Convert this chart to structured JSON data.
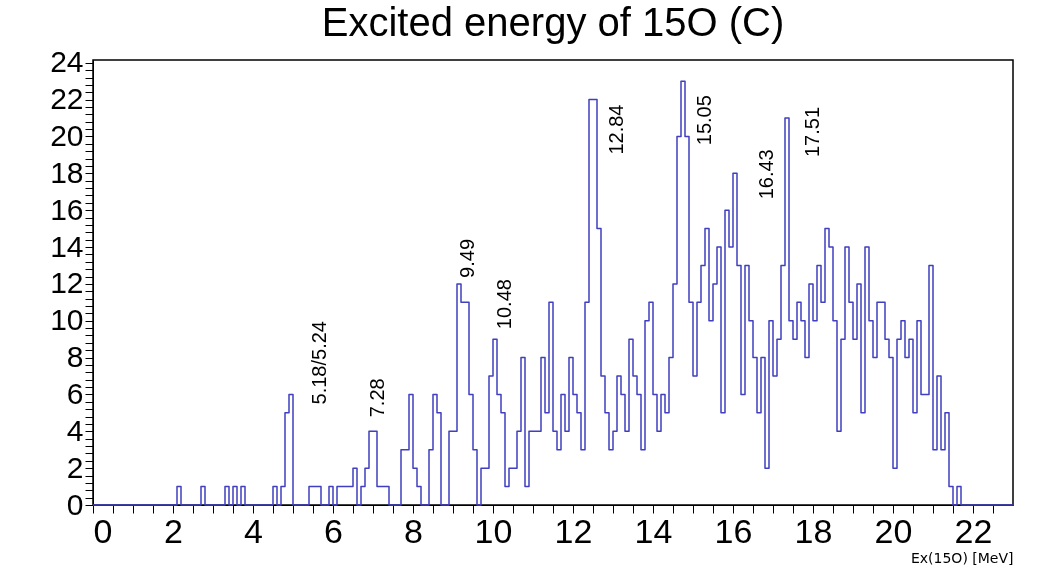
{
  "chart_data": {
    "type": "histogram",
    "title": "Excited energy of 15O (C)",
    "xlabel": "Ex(15O) [MeV]",
    "bins": [
      0,
      0.1,
      0.2,
      0.3,
      0.4,
      0.5,
      0.6,
      0.7,
      0.8,
      0.9,
      1,
      1.1,
      1.2,
      1.3,
      1.4,
      1.5,
      1.6,
      1.7,
      1.8,
      1.9,
      2,
      2.1,
      2.2,
      2.3,
      2.4,
      2.5,
      2.6,
      2.7,
      2.8,
      2.9,
      3,
      3.1,
      3.2,
      3.3,
      3.4,
      3.5,
      3.6,
      3.7,
      3.8,
      3.9,
      4,
      4.1,
      4.2,
      4.3,
      4.4,
      4.5,
      4.6,
      4.7,
      4.8,
      4.9,
      5,
      5.1,
      5.2,
      5.3,
      5.4,
      5.5,
      5.6,
      5.7,
      5.8,
      5.9,
      6,
      6.1,
      6.2,
      6.3,
      6.4,
      6.5,
      6.6,
      6.7,
      6.8,
      6.9,
      7,
      7.1,
      7.2,
      7.3,
      7.4,
      7.5,
      7.6,
      7.7,
      7.8,
      7.9,
      8,
      8.1,
      8.2,
      8.3,
      8.4,
      8.5,
      8.6,
      8.7,
      8.8,
      8.9,
      9,
      9.1,
      9.2,
      9.3,
      9.4,
      9.5,
      9.6,
      9.7,
      9.8,
      9.9,
      10,
      10.1,
      10.2,
      10.3,
      10.4,
      10.5,
      10.6,
      10.7,
      10.8,
      10.9,
      11,
      11.1,
      11.2,
      11.3,
      11.4,
      11.5,
      11.6,
      11.7,
      11.8,
      11.9,
      12,
      12.1,
      12.2,
      12.3,
      12.4,
      12.5,
      12.6,
      12.7,
      12.8,
      12.9,
      13,
      13.1,
      13.2,
      13.3,
      13.4,
      13.5,
      13.6,
      13.7,
      13.8,
      13.9,
      14,
      14.1,
      14.2,
      14.3,
      14.4,
      14.5,
      14.6,
      14.7,
      14.8,
      14.9,
      15,
      15.1,
      15.2,
      15.3,
      15.4,
      15.5,
      15.6,
      15.7,
      15.8,
      15.9,
      16,
      16.1,
      16.2,
      16.3,
      16.4,
      16.5,
      16.6,
      16.7,
      16.8,
      16.9,
      17,
      17.1,
      17.2,
      17.3,
      17.4,
      17.5,
      17.6,
      17.7,
      17.8,
      17.9,
      18,
      18.1,
      18.2,
      18.3,
      18.4,
      18.5,
      18.6,
      18.7,
      18.8,
      18.9,
      19,
      19.1,
      19.2,
      19.3,
      19.4,
      19.5,
      19.6,
      19.7,
      19.8,
      19.9,
      20,
      20.1,
      20.2,
      20.3,
      20.4,
      20.5,
      20.6,
      20.7,
      20.8,
      20.9,
      21,
      21.1,
      21.2,
      21.3,
      21.4,
      21.5,
      21.6,
      21.7,
      21.8,
      21.9,
      22,
      22.1,
      22.2,
      22.3,
      22.4,
      22.5,
      22.6,
      22.7,
      22.8,
      22.9,
      23
    ],
    "values": [
      0,
      0,
      0,
      0,
      0,
      0,
      0,
      0,
      0,
      0,
      0,
      0,
      0,
      0,
      0,
      0,
      0,
      0,
      0,
      0,
      0,
      1,
      0,
      0,
      0,
      0,
      0,
      1,
      0,
      0,
      0,
      0,
      0,
      1,
      0,
      1,
      0,
      1,
      0,
      0,
      0,
      0,
      0,
      0,
      0,
      1,
      0,
      1,
      5,
      6,
      0,
      0,
      0,
      0,
      1,
      1,
      1,
      0,
      0,
      1,
      0,
      1,
      1,
      1,
      1,
      2,
      0,
      1,
      2,
      4,
      4,
      1,
      1,
      1,
      0,
      0,
      0,
      3,
      3,
      6,
      2,
      1,
      0,
      0,
      3,
      6,
      5,
      0,
      0,
      4,
      4,
      12,
      11,
      11,
      6,
      3,
      0,
      2,
      2,
      7,
      9,
      6,
      5,
      1,
      2,
      2,
      4,
      8,
      1,
      4,
      4,
      4,
      8,
      5,
      11,
      4,
      3,
      6,
      4,
      8,
      6,
      5,
      3,
      11,
      22,
      22,
      15,
      7,
      5,
      3,
      4,
      7,
      6,
      4,
      9,
      7,
      6,
      3,
      10,
      11,
      6,
      4,
      6,
      5,
      8,
      12,
      20,
      23,
      20,
      11,
      7,
      11,
      13,
      15,
      10,
      12,
      14,
      5,
      16,
      14,
      18,
      13,
      6,
      13,
      10,
      8,
      5,
      8,
      2,
      10,
      7,
      9,
      13,
      21,
      10,
      9,
      11,
      10,
      8,
      12,
      10,
      13,
      11,
      15,
      14,
      10,
      4,
      9,
      14,
      11,
      9,
      12,
      5,
      14,
      10,
      8,
      11,
      11,
      9,
      8,
      2,
      9,
      10,
      8,
      9,
      5,
      10,
      6,
      6,
      13,
      3,
      7,
      3,
      5,
      1,
      0,
      1,
      0,
      0,
      0,
      0,
      0,
      0,
      0,
      0,
      0,
      0,
      0,
      0,
      0
    ],
    "color": "#3f3fbf",
    "xlim": [
      0,
      23
    ],
    "xticks": [
      0,
      {
        "value": 0.5,
        "label": null
      },
      {
        "value": 1,
        "label": null
      },
      {
        "value": 1.5,
        "label": null
      },
      2,
      {
        "value": 2.5,
        "label": null
      },
      {
        "value": 3,
        "label": null
      },
      {
        "value": 3.5,
        "label": null
      },
      4,
      {
        "value": 4.5,
        "label": null
      },
      {
        "value": 5,
        "label": null
      },
      {
        "value": 5.5,
        "label": null
      },
      6,
      {
        "value": 6.5,
        "label": null
      },
      {
        "value": 7,
        "label": null
      },
      {
        "value": 7.5,
        "label": null
      },
      8,
      {
        "value": 8.5,
        "label": null
      },
      {
        "value": 9,
        "label": null
      },
      {
        "value": 9.5,
        "label": null
      },
      10,
      {
        "value": 10.5,
        "label": null
      },
      {
        "value": 11,
        "label": null
      },
      {
        "value": 11.5,
        "label": null
      },
      12,
      {
        "value": 12.5,
        "label": null
      },
      {
        "value": 13,
        "label": null
      },
      {
        "value": 13.5,
        "label": null
      },
      14,
      {
        "value": 14.5,
        "label": null
      },
      {
        "value": 15,
        "label": null
      },
      {
        "value": 15.5,
        "label": null
      },
      16,
      {
        "value": 16.5,
        "label": null
      },
      {
        "value": 17,
        "label": null
      },
      {
        "value": 17.5,
        "label": null
      },
      18,
      {
        "value": 18.5,
        "label": null
      },
      {
        "value": 19,
        "label": null
      },
      {
        "value": 19.5,
        "label": null
      },
      20,
      {
        "value": 20.5,
        "label": null
      },
      {
        "value": 21,
        "label": null
      },
      {
        "value": 21.5,
        "label": null
      },
      22,
      {
        "value": 22.5,
        "label": null
      }
    ],
    "ylim": [
      0,
      24.15
    ],
    "yticks": [
      0,
      {
        "value": 0.4,
        "label": null
      },
      {
        "value": 0.8,
        "label": null
      },
      {
        "value": 1.2,
        "label": null
      },
      {
        "value": 1.6,
        "label": null
      },
      2,
      {
        "value": 2.4,
        "label": null
      },
      {
        "value": 2.8,
        "label": null
      },
      {
        "value": 3.2,
        "label": null
      },
      {
        "value": 3.6,
        "label": null
      },
      4,
      {
        "value": 4.4,
        "label": null
      },
      {
        "value": 4.8,
        "label": null
      },
      {
        "value": 5.2,
        "label": null
      },
      {
        "value": 5.6,
        "label": null
      },
      6,
      {
        "value": 6.4,
        "label": null
      },
      {
        "value": 6.8,
        "label": null
      },
      {
        "value": 7.2,
        "label": null
      },
      {
        "value": 7.6,
        "label": null
      },
      8,
      {
        "value": 8.4,
        "label": null
      },
      {
        "value": 8.8,
        "label": null
      },
      {
        "value": 9.2,
        "label": null
      },
      {
        "value": 9.6,
        "label": null
      },
      10,
      {
        "value": 10.4,
        "label": null
      },
      {
        "value": 10.8,
        "label": null
      },
      {
        "value": 11.2,
        "label": null
      },
      {
        "value": 11.6,
        "label": null
      },
      12,
      {
        "value": 12.4,
        "label": null
      },
      {
        "value": 12.8,
        "label": null
      },
      {
        "value": 13.2,
        "label": null
      },
      {
        "value": 13.6,
        "label": null
      },
      14,
      {
        "value": 14.4,
        "label": null
      },
      {
        "value": 14.8,
        "label": null
      },
      {
        "value": 15.2,
        "label": null
      },
      {
        "value": 15.6,
        "label": null
      },
      16,
      {
        "value": 16.4,
        "label": null
      },
      {
        "value": 16.8,
        "label": null
      },
      {
        "value": 17.2,
        "label": null
      },
      {
        "value": 17.6,
        "label": null
      },
      18,
      {
        "value": 18.4,
        "label": null
      },
      {
        "value": 18.8,
        "label": null
      },
      {
        "value": 19.2,
        "label": null
      },
      {
        "value": 19.6,
        "label": null
      },
      20,
      {
        "value": 20.4,
        "label": null
      },
      {
        "value": 20.8,
        "label": null
      },
      {
        "value": 21.2,
        "label": null
      },
      {
        "value": 21.6,
        "label": null
      },
      22,
      {
        "value": 22.4,
        "label": null
      },
      {
        "value": 22.8,
        "label": null
      },
      {
        "value": 23.2,
        "label": null
      },
      {
        "value": 23.6,
        "label": null
      },
      24
    ],
    "annotations": [
      {
        "text": "5.18/5.24",
        "x": 4.95,
        "y": 6
      },
      {
        "text": "7.28",
        "x": 7.05,
        "y": 4
      },
      {
        "text": "9.49",
        "x": 9.15,
        "y": 12
      },
      {
        "text": "10.48",
        "x": 10.05,
        "y": 9
      },
      {
        "text": "12.84",
        "x": 12.55,
        "y": 22
      },
      {
        "text": "15.05",
        "x": 14.75,
        "y": 23
      },
      {
        "text": "16.43",
        "x": 16.05,
        "y": 18
      },
      {
        "text": "17.51",
        "x": 17.35,
        "y": 21
      }
    ],
    "grid": false
  }
}
